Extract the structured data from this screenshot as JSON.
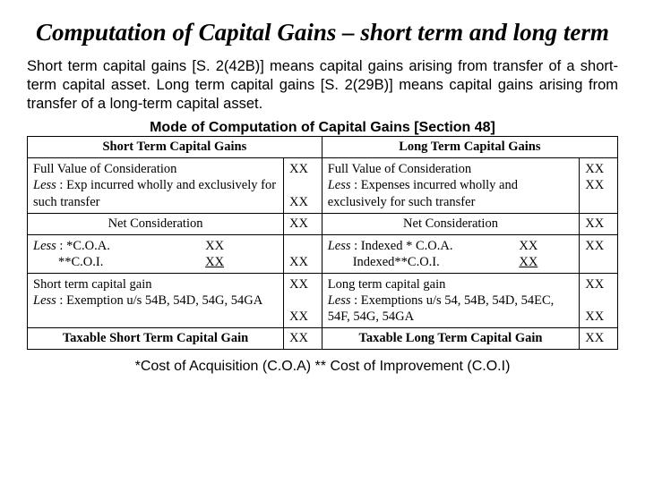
{
  "title": "Computation of Capital Gains – short term and long term",
  "intro": "Short term capital gains [S. 2(42B)] means capital gains arising from transfer of a short-term capital asset.  Long term capital gains [S. 2(29B)] means capital gains arising from transfer of a long-term capital asset.",
  "subheader": "Mode of Computation of Capital Gains [Section 48]",
  "table": {
    "headers": {
      "short": "Short Term Capital Gains",
      "long": "Long Term Capital Gains"
    },
    "rows": [
      {
        "short_desc_line1": "Full Value of Consideration",
        "short_desc_line2_prefix": "Less",
        "short_desc_line2_rest": " : Exp incurred wholly and exclusively for such transfer",
        "short_val": "XX\nXX",
        "long_desc_line1": "Full Value of Consideration",
        "long_desc_line2_prefix": "Less",
        "long_desc_line2_rest": " : Expenses incurred wholly and exclusively for such transfer",
        "long_val": "XX\nXX"
      },
      {
        "short_desc": "Net Consideration",
        "short_val": "XX",
        "long_desc": "Net Consideration",
        "long_val": "XX"
      },
      {
        "short_prefix": "Less",
        "short_rest1": " : *C.O.A.",
        "short_amt1": "XX",
        "short_rest2": "**C.O.I.",
        "short_amt2": "XX",
        "short_val": "XX",
        "long_prefix": "Less",
        "long_rest1": " : Indexed * C.O.A.",
        "long_amt1": "XX",
        "long_rest2": "Indexed**C.O.I.",
        "long_amt2": "XX",
        "long_val": "XX"
      },
      {
        "short_line1": "Short term capital gain",
        "short_prefix": "Less",
        "short_rest": " : Exemption u/s 54B, 54D, 54G, 54GA",
        "short_val": "XX\nXX",
        "long_line1": "Long term capital gain",
        "long_prefix": "Less",
        "long_rest": " : Exemptions u/s 54, 54B, 54D, 54EC, 54F, 54G, 54GA",
        "long_val": "XX\nXX"
      },
      {
        "short_desc": "Taxable Short Term Capital Gain",
        "short_val": "XX",
        "long_desc": "Taxable Long Term Capital Gain",
        "long_val": "XX"
      }
    ]
  },
  "footnote": "*Cost of Acquisition (C.O.A) ** Cost of Improvement (C.O.I)"
}
